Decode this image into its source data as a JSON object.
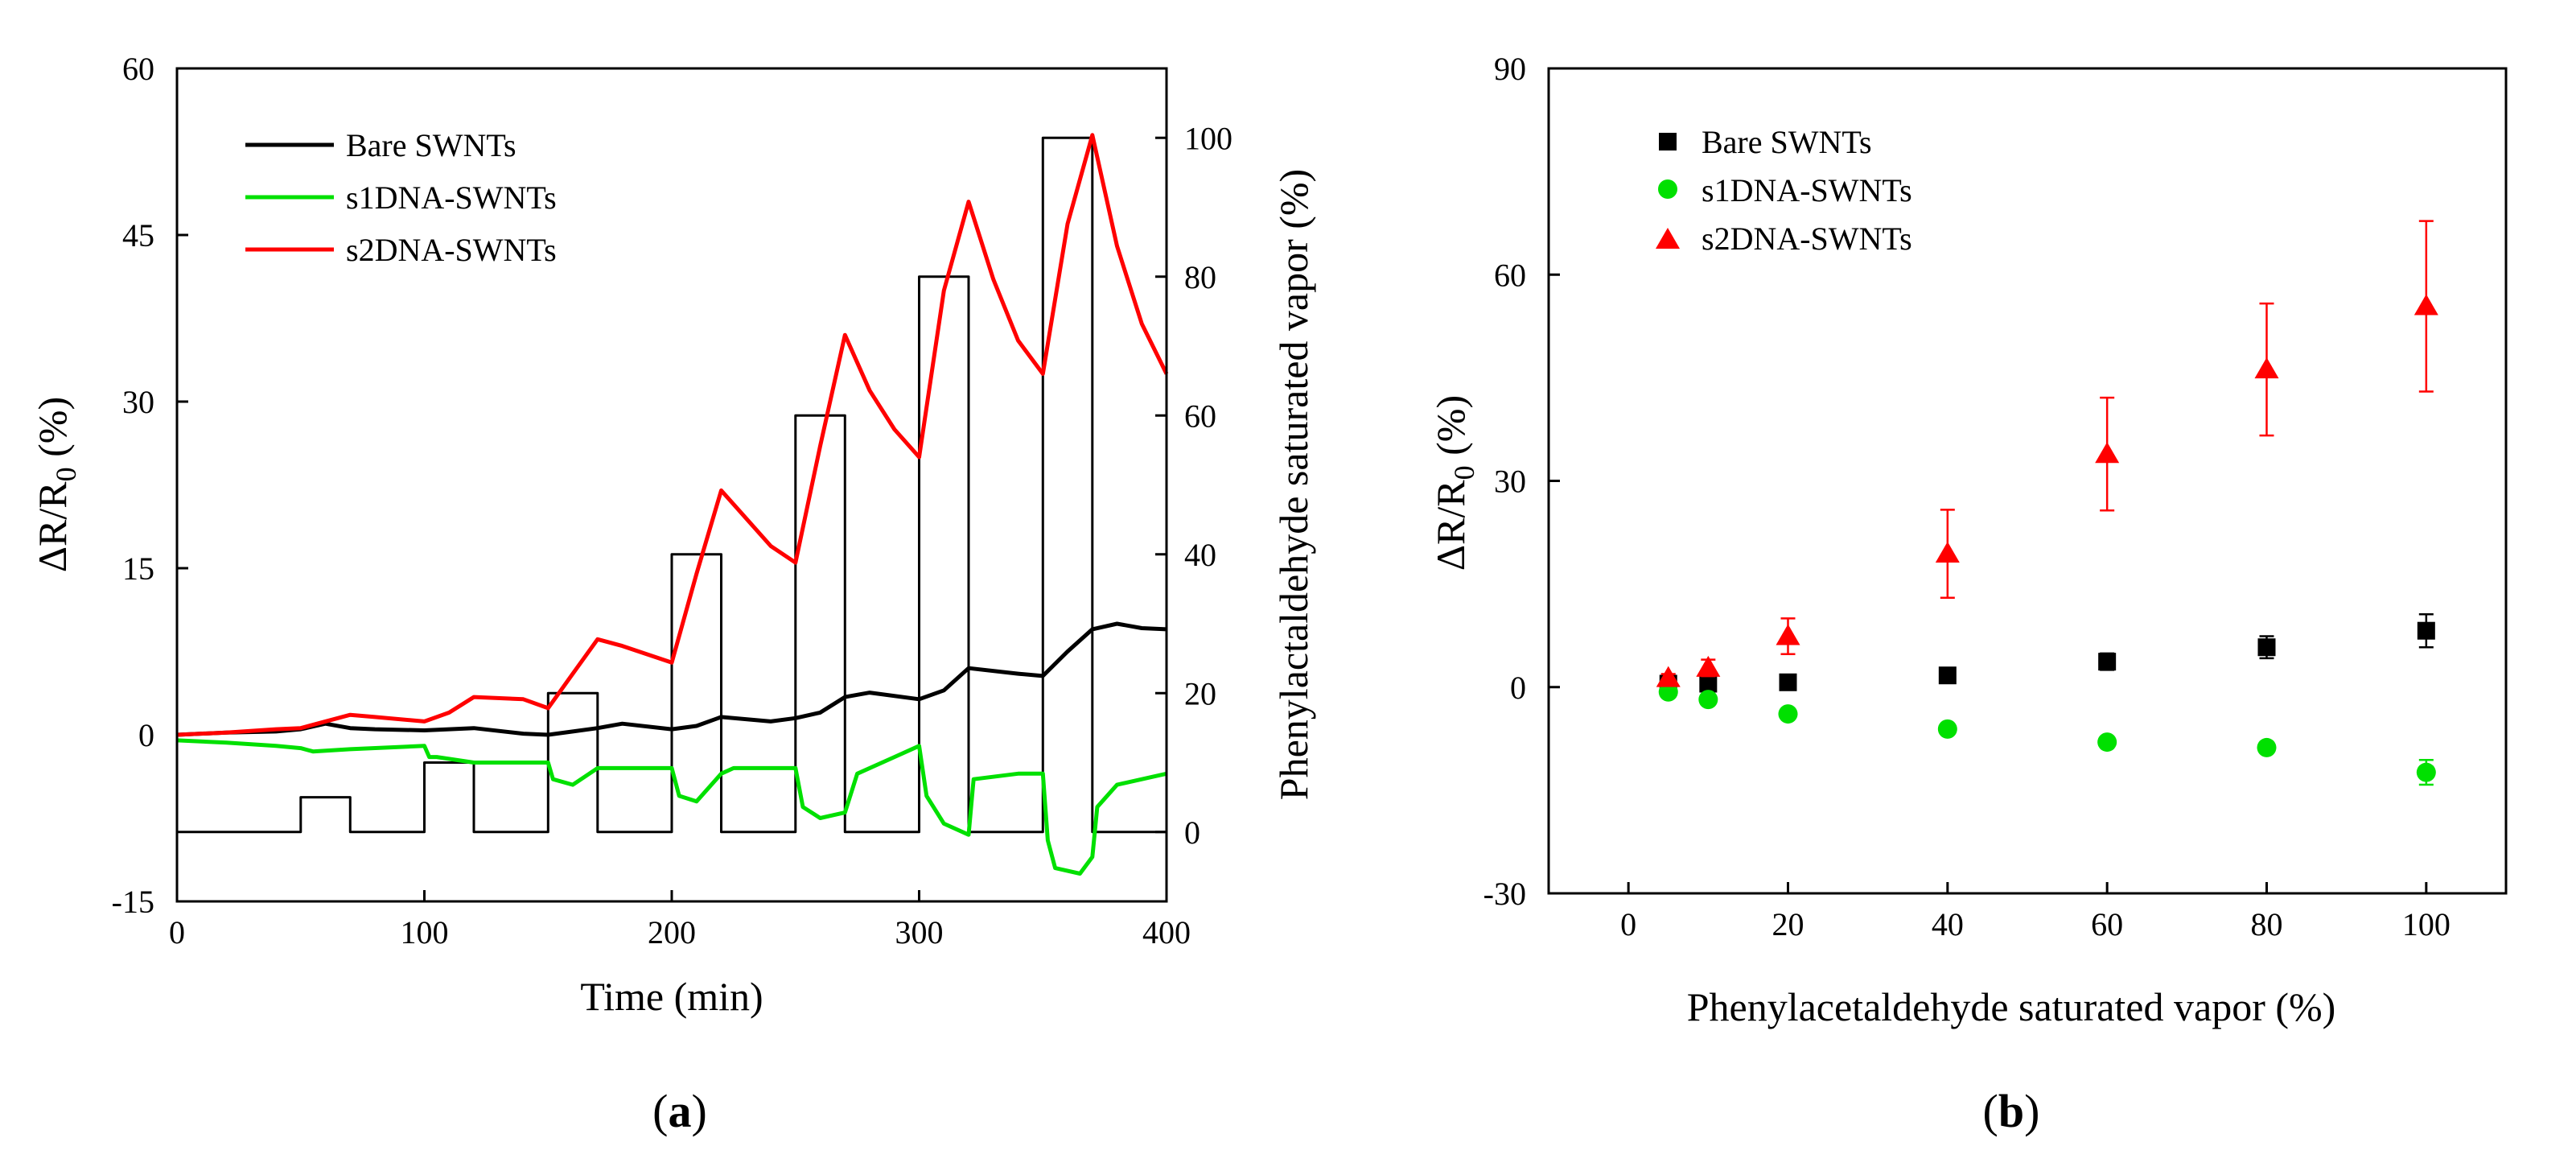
{
  "colors": {
    "bare": "#000000",
    "s1": "#00e000",
    "s2": "#ff0000",
    "vapor": "#000000"
  },
  "chart_data": [
    {
      "type": "line",
      "panel_label": {
        "open": "(",
        "letter": "a",
        "close": ")"
      },
      "xlabel": "Time (min)",
      "ylabel": {
        "main": "ΔR/R",
        "sub": "0",
        "unit": " (%)"
      },
      "y2label": "Phenylactaldehyde saturated vapor (%)",
      "xlim": [
        0,
        400
      ],
      "ylim": [
        -15,
        60
      ],
      "y2lim": [
        -10,
        110
      ],
      "xticks": [
        0,
        100,
        200,
        300,
        400
      ],
      "yticks": [
        -15,
        0,
        15,
        30,
        45,
        60
      ],
      "y2ticks": [
        0,
        20,
        40,
        60,
        80,
        100
      ],
      "legend": [
        "Bare SWNTs",
        "s1DNA-SWNTs",
        "s2DNA-SWNTs"
      ],
      "series": [
        {
          "name": "Bare SWNTs",
          "axis": "left",
          "x": [
            0,
            20,
            40,
            50,
            60,
            70,
            80,
            100,
            120,
            140,
            150,
            160,
            170,
            180,
            200,
            210,
            220,
            240,
            250,
            260,
            270,
            280,
            300,
            310,
            320,
            340,
            350,
            360,
            370,
            380,
            390,
            400
          ],
          "y": [
            0,
            0.2,
            0.3,
            0.5,
            1.0,
            0.6,
            0.5,
            0.4,
            0.6,
            0.1,
            0.0,
            0.3,
            0.6,
            1.0,
            0.5,
            0.8,
            1.6,
            1.2,
            1.5,
            2.0,
            3.4,
            3.8,
            3.2,
            4.0,
            6.0,
            5.5,
            5.3,
            7.5,
            9.5,
            10.0,
            9.6,
            9.5
          ]
        },
        {
          "name": "s1DNA-SWNTs",
          "axis": "left",
          "x": [
            0,
            20,
            40,
            50,
            55,
            70,
            100,
            102,
            105,
            120,
            150,
            152,
            160,
            170,
            200,
            203,
            210,
            220,
            225,
            240,
            250,
            253,
            260,
            270,
            275,
            290,
            300,
            303,
            310,
            320,
            322,
            340,
            350,
            352,
            355,
            365,
            370,
            372,
            380,
            390,
            400
          ],
          "y": [
            -0.5,
            -0.7,
            -1.0,
            -1.2,
            -1.5,
            -1.3,
            -1.0,
            -2.0,
            -2.0,
            -2.5,
            -2.5,
            -4.0,
            -4.5,
            -3.0,
            -3.0,
            -5.5,
            -6.0,
            -3.5,
            -3.0,
            -3.0,
            -3.0,
            -6.5,
            -7.5,
            -7.0,
            -3.5,
            -2.0,
            -1.0,
            -5.5,
            -8.0,
            -9.0,
            -4.0,
            -3.5,
            -3.5,
            -9.5,
            -12.0,
            -12.5,
            -11.0,
            -6.5,
            -4.5,
            -4.0,
            -3.5
          ]
        },
        {
          "name": "s2DNA-SWNTs",
          "axis": "left",
          "x": [
            0,
            20,
            40,
            50,
            60,
            70,
            80,
            100,
            110,
            120,
            140,
            150,
            160,
            170,
            180,
            200,
            210,
            220,
            230,
            240,
            250,
            260,
            270,
            280,
            290,
            300,
            310,
            320,
            330,
            340,
            350,
            360,
            370,
            380,
            390,
            400
          ],
          "y": [
            0,
            0.2,
            0.5,
            0.6,
            1.2,
            1.8,
            1.6,
            1.2,
            2.0,
            3.4,
            3.2,
            2.4,
            5.5,
            8.6,
            8.0,
            6.5,
            14.5,
            22.0,
            19.5,
            17.0,
            15.5,
            26.0,
            36.0,
            31.0,
            27.5,
            25.0,
            40.0,
            48.0,
            41.0,
            35.5,
            32.5,
            46.0,
            54.0,
            44.0,
            37.0,
            32.5
          ]
        },
        {
          "name": "Phenylactaldehyde saturated vapor",
          "axis": "right",
          "x": [
            0,
            50,
            50,
            70,
            70,
            100,
            100,
            120,
            120,
            150,
            150,
            170,
            170,
            200,
            200,
            220,
            220,
            250,
            250,
            270,
            270,
            300,
            300,
            320,
            320,
            350,
            350,
            370,
            370,
            400
          ],
          "y": [
            0,
            0,
            5,
            5,
            0,
            0,
            10,
            10,
            0,
            0,
            20,
            20,
            0,
            0,
            40,
            40,
            0,
            0,
            60,
            60,
            0,
            0,
            80,
            80,
            0,
            0,
            100,
            100,
            0,
            0
          ]
        }
      ]
    },
    {
      "type": "scatter",
      "panel_label": {
        "open": "(",
        "letter": "b",
        "close": ")"
      },
      "xlabel": "Phenylacetaldehyde saturated vapor (%)",
      "ylabel": {
        "main": "ΔR/R",
        "sub": "0",
        "unit": " (%)"
      },
      "xlim": [
        -10,
        110
      ],
      "ylim": [
        -30,
        90
      ],
      "xticks": [
        0,
        20,
        40,
        60,
        80,
        100
      ],
      "yticks": [
        -30,
        0,
        30,
        60,
        90
      ],
      "legend": [
        "Bare SWNTs",
        "s1DNA-SWNTs",
        "s2DNA-SWNTs"
      ],
      "series": [
        {
          "name": "Bare SWNTs",
          "marker": "square",
          "x": [
            5,
            10,
            20,
            40,
            60,
            80,
            100
          ],
          "y": [
            0.5,
            0.5,
            0.7,
            1.7,
            3.7,
            5.8,
            8.2
          ],
          "err": [
            0.5,
            0.5,
            0.6,
            0.8,
            1.2,
            1.6,
            2.4
          ]
        },
        {
          "name": "s1DNA-SWNTs",
          "marker": "circle",
          "x": [
            5,
            10,
            20,
            40,
            60,
            80,
            100
          ],
          "y": [
            -0.7,
            -1.8,
            -3.9,
            -6.1,
            -8.0,
            -8.8,
            -12.4
          ],
          "err": [
            0.3,
            0.4,
            0.5,
            0.6,
            0.7,
            0.8,
            1.8
          ]
        },
        {
          "name": "s2DNA-SWNTs",
          "marker": "triangle",
          "x": [
            5,
            10,
            20,
            40,
            60,
            80,
            100
          ],
          "y": [
            1.3,
            2.8,
            7.4,
            19.4,
            33.9,
            46.2,
            55.4
          ],
          "err": [
            0.6,
            1.2,
            2.6,
            6.4,
            8.2,
            9.6,
            12.4
          ]
        }
      ]
    }
  ]
}
